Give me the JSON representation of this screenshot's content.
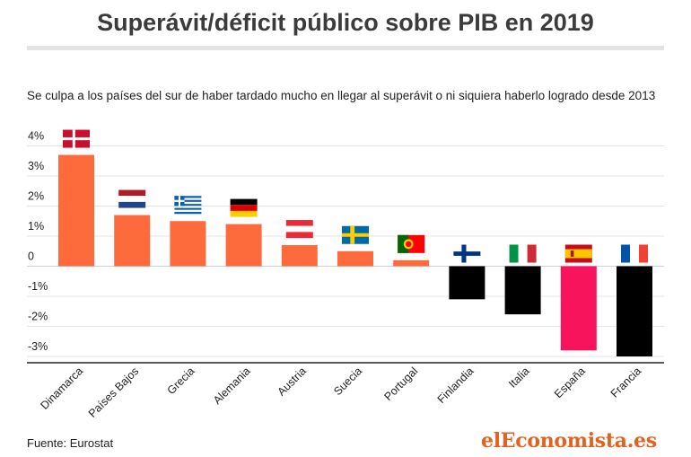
{
  "title": "Superávit/déficit público sobre PIB en 2019",
  "subtitle": "Se culpa a los países del sur de haber tardado mucho en llegar al superávit o ni siquiera haberlo logrado desde 2013",
  "source": "Fuente: Eurostat",
  "logo": "elEconomista.es",
  "colors": {
    "surplus": "#fd6a3c",
    "deficit": "#000000",
    "spain": "#f7145c",
    "logo": "#e4611f"
  },
  "chart_data": {
    "type": "bar",
    "categories": [
      "Dinamarca",
      "Países Bajos",
      "Grecia",
      "Alemania",
      "Austria",
      "Suecia",
      "Portugal",
      "Finlandia",
      "Italia",
      "España",
      "Francia"
    ],
    "values": [
      3.7,
      1.7,
      1.5,
      1.4,
      0.7,
      0.5,
      0.2,
      -1.1,
      -1.6,
      -2.8,
      -3.0
    ],
    "flags": [
      "denmark-flag-icon",
      "netherlands-flag-icon",
      "greece-flag-icon",
      "germany-flag-icon",
      "austria-flag-icon",
      "sweden-flag-icon",
      "portugal-flag-icon",
      "finland-flag-icon",
      "italy-flag-icon",
      "spain-flag-icon",
      "france-flag-icon"
    ],
    "ylim": [
      -3,
      4
    ],
    "yticks": [
      4,
      3,
      2,
      1,
      0,
      -1,
      -2,
      -3
    ],
    "ytick_labels": [
      "4%",
      "3%",
      "2%",
      "1%",
      "0",
      "-1%",
      "-2%",
      "-3%"
    ],
    "grid": true
  }
}
